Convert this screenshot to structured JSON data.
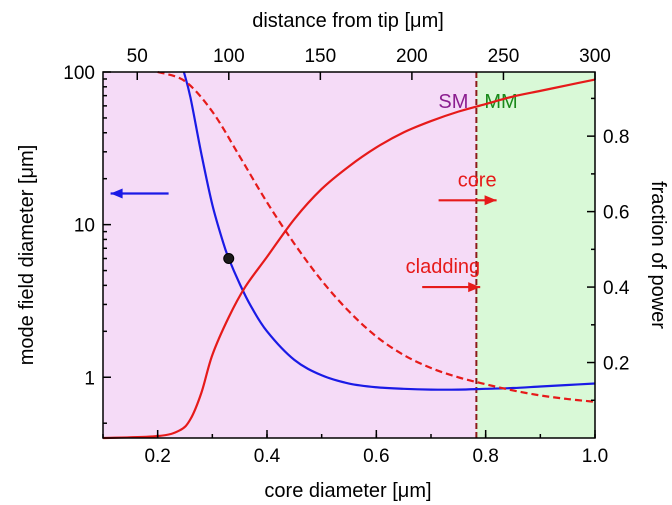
{
  "chart_data": {
    "type": "line",
    "xlabel": "core diameter [μm]",
    "ylabel": "mode field diameter [μm]",
    "y2label": "fraction of power",
    "x2label": "distance from tip [μm]",
    "xlim": [
      0.1,
      1.0
    ],
    "ylim": [
      0.4,
      100
    ],
    "yscale": "log",
    "y2lim": [
      0.0,
      0.97
    ],
    "x2lim": [
      31.3,
      300
    ],
    "x_ticks": [
      "0.2",
      "0.4",
      "0.6",
      "0.8",
      "1.0"
    ],
    "y_ticks": [
      "1",
      "10",
      "100"
    ],
    "y2_ticks": [
      "0.2",
      "0.4",
      "0.6",
      "0.8"
    ],
    "x2_ticks": [
      "50",
      "100",
      "150",
      "200",
      "250",
      "300"
    ],
    "regions": [
      {
        "label": "SM",
        "from": 0.1,
        "to": 0.783,
        "color": "#f5dbf7",
        "label_color": "#8b1e8f"
      },
      {
        "label": "MM",
        "from": 0.783,
        "to": 1.0,
        "color": "#d9f9d7",
        "label_color": "#1a8a1a"
      }
    ],
    "cutoff": {
      "x": 0.783,
      "color": "#8b1a1a"
    },
    "series": [
      {
        "axis": "left",
        "color": "#1a1ae6",
        "dash": "solid",
        "x": [
          0.248,
          0.26,
          0.28,
          0.3,
          0.32,
          0.33,
          0.35,
          0.37,
          0.4,
          0.45,
          0.5,
          0.55,
          0.6,
          0.65,
          0.7,
          0.75,
          0.8,
          0.85,
          0.9,
          0.95,
          1.0
        ],
        "y": [
          100,
          68,
          29,
          13.5,
          7.6,
          6.0,
          4.1,
          2.95,
          2.0,
          1.3,
          1.03,
          0.91,
          0.86,
          0.84,
          0.83,
          0.83,
          0.84,
          0.85,
          0.87,
          0.89,
          0.91
        ]
      },
      {
        "axis": "right",
        "color": "#e61a1a",
        "dash": "solid",
        "x": [
          0.1,
          0.2,
          0.24,
          0.26,
          0.28,
          0.3,
          0.33,
          0.36,
          0.4,
          0.45,
          0.5,
          0.55,
          0.6,
          0.65,
          0.7,
          0.75,
          0.8,
          0.85,
          0.9,
          0.95,
          1.0
        ],
        "y": [
          0.0,
          0.005,
          0.02,
          0.05,
          0.12,
          0.22,
          0.32,
          0.4,
          0.48,
          0.58,
          0.66,
          0.72,
          0.77,
          0.81,
          0.84,
          0.865,
          0.885,
          0.905,
          0.92,
          0.935,
          0.95
        ]
      },
      {
        "axis": "left",
        "color": "#e61a1a",
        "dash": "dashed",
        "x": [
          0.2,
          0.25,
          0.3,
          0.35,
          0.4,
          0.45,
          0.5,
          0.55,
          0.6,
          0.65,
          0.7,
          0.75,
          0.8,
          0.85,
          0.9,
          0.95,
          1.0
        ],
        "y": [
          100,
          87,
          55,
          28,
          14,
          7.5,
          4.3,
          2.7,
          1.85,
          1.4,
          1.15,
          1.0,
          0.9,
          0.82,
          0.76,
          0.72,
          0.69
        ]
      }
    ],
    "marker": {
      "x": 0.33,
      "y": 6.0
    },
    "annotations": [
      {
        "text": "core",
        "x": 0.82,
        "y": 0.63,
        "axis": "right",
        "arrow": "right",
        "color": "#e61a1a"
      },
      {
        "text": "cladding",
        "x": 0.79,
        "y": 0.4,
        "axis": "right",
        "arrow": "right",
        "color": "#e61a1a"
      }
    ],
    "left_arrow": {
      "x": 0.22,
      "y": 16,
      "direction": "left",
      "color": "#1a1ae6"
    }
  }
}
